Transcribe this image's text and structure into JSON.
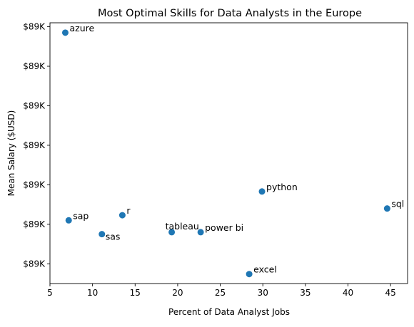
{
  "chart_data": {
    "type": "scatter",
    "title": "Most Optimal Skills for Data Analysts in the Europe",
    "xlabel": "Percent of Data Analyst Jobs",
    "ylabel": "Mean Salary ($USD)",
    "xlim": [
      5,
      47
    ],
    "ylim": [
      88900,
      89560
    ],
    "x_ticks": [
      5,
      10,
      15,
      20,
      25,
      30,
      35,
      40,
      45
    ],
    "y_ticks": [
      88950,
      89050,
      89150,
      89250,
      89350,
      89450,
      89550
    ],
    "y_tick_labels": [
      "$89K",
      "$89K",
      "$89K",
      "$89K",
      "$89K",
      "$89K",
      "$89K"
    ],
    "grid": false,
    "marker_color": "#1f77b4",
    "points": [
      {
        "label": "azure",
        "x": 6.8,
        "y": 89535
      },
      {
        "label": "python",
        "x": 29.9,
        "y": 89133
      },
      {
        "label": "sql",
        "x": 44.6,
        "y": 89090
      },
      {
        "label": "r",
        "x": 13.5,
        "y": 89073
      },
      {
        "label": "sap",
        "x": 7.2,
        "y": 89060
      },
      {
        "label": "tableau",
        "x": 19.3,
        "y": 89030
      },
      {
        "label": "power bi",
        "x": 22.7,
        "y": 89030
      },
      {
        "label": "sas",
        "x": 11.1,
        "y": 89025
      },
      {
        "label": "excel",
        "x": 28.4,
        "y": 88924
      }
    ]
  }
}
